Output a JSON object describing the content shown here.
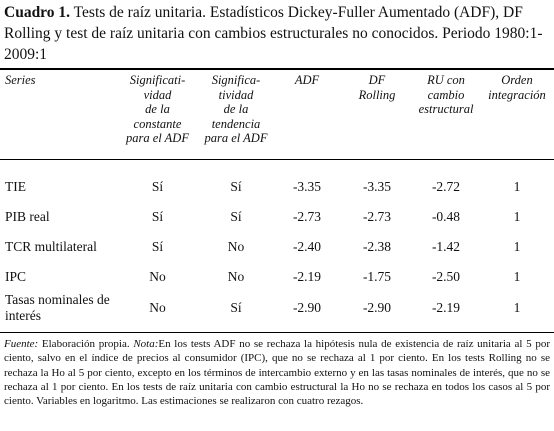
{
  "title": {
    "label": "Cuadro 1.",
    "text": "Tests de raíz unitaria. Estadísticos Dickey-Fuller Aumentado (ADF), DF Rolling y test de raíz unitaria con cambios estructurales no conocidos. Periodo 1980:1-2009:1"
  },
  "table": {
    "columns": [
      [
        "Series"
      ],
      [
        "Significati-",
        "vidad",
        "de la",
        "constante",
        "para el ADF"
      ],
      [
        "Significa-",
        "tividad",
        "de la",
        "tendencia",
        "para el ADF"
      ],
      [
        "ADF"
      ],
      [
        "DF",
        "Rolling"
      ],
      [
        "RU con",
        "cambio",
        "estructural"
      ],
      [
        "Orden",
        "integración"
      ]
    ],
    "rows": [
      [
        "TIE",
        "Sí",
        "Sí",
        "-3.35",
        "-3.35",
        "-2.72",
        "1"
      ],
      [
        "PIB real",
        "Sí",
        "Sí",
        "-2.73",
        "-2.73",
        "-0.48",
        "1"
      ],
      [
        "TCR multilateral",
        "Sí",
        "No",
        "-2.40",
        "-2.38",
        "-1.42",
        "1"
      ],
      [
        "IPC",
        "No",
        "No",
        "-2.19",
        "-1.75",
        "-2.50",
        "1"
      ],
      [
        "Tasas nominales de interés",
        "No",
        "Sí",
        "-2.90",
        "-2.90",
        "-2.19",
        "1"
      ]
    ]
  },
  "note": {
    "source_label": "Fuente:",
    "source": "Elaboración propia.",
    "note_label": "Nota:",
    "note": "En los tests ADF no se rechaza la hipótesis nula de existencia de raíz unitaria al 5 por ciento, salvo en el índice de precios al consumidor (IPC), que no se rechaza al 1 por ciento. En los tests Rolling no se rechaza la Ho al 5 por ciento, excepto en los términos de intercambio externo y en las tasas nominales de interés, que no se rechaza al 1 por ciento. En los tests de raíz unitaria con cambio estructural la Ho no se rechaza en todos los casos al 5 por ciento. Variables en logaritmo. Las estimaciones se realizaron con cuatro rezagos."
  }
}
